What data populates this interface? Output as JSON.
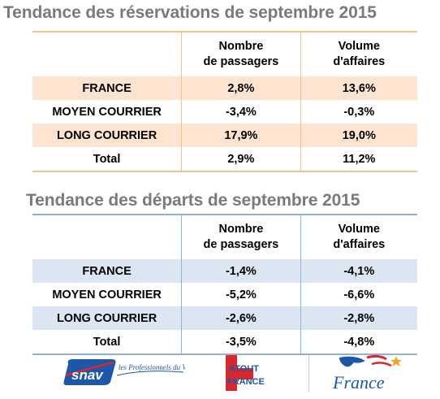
{
  "sections": [
    {
      "title": "Tendance des réservations de septembre 2015",
      "col_headers": [
        "Nombre\nde passagers",
        "Volume\nd'affaires"
      ],
      "rows": [
        {
          "label": "FRANCE",
          "passagers": "2,8%",
          "affaires": "13,6%"
        },
        {
          "label": "MOYEN COURRIER",
          "passagers": "-3,4%",
          "affaires": "-0,3%"
        },
        {
          "label": "LONG COURRIER",
          "passagers": "17,9%",
          "affaires": "19,0%"
        },
        {
          "label": "Total",
          "passagers": "2,9%",
          "affaires": "11,2%"
        }
      ]
    },
    {
      "title": "Tendance des départs de septembre 2015",
      "col_headers": [
        "Nombre\nde passagers",
        "Volume\nd'affaires"
      ],
      "rows": [
        {
          "label": "FRANCE",
          "passagers": "-1,4%",
          "affaires": "-4,1%"
        },
        {
          "label": "MOYEN COURRIER",
          "passagers": "-5,2%",
          "affaires": "-6,6%"
        },
        {
          "label": "LONG COURRIER",
          "passagers": "-2,6%",
          "affaires": "-2,8%"
        },
        {
          "label": "Total",
          "passagers": "-3,5%",
          "affaires": "-4,8%"
        }
      ]
    }
  ],
  "logos": {
    "snav": {
      "text": "snav",
      "tagline": "les Professionnels du Voyage"
    },
    "atout": {
      "line1": "ATOUT",
      "line2": "FRANCE"
    },
    "france": {
      "text": "France"
    }
  },
  "colors": {
    "title": "#7a7a7a",
    "reservations_accent": "#f3c18d",
    "reservations_shade": "#fce4d0",
    "departs_accent": "#8fb3d6",
    "departs_shade": "#dce6f2"
  }
}
